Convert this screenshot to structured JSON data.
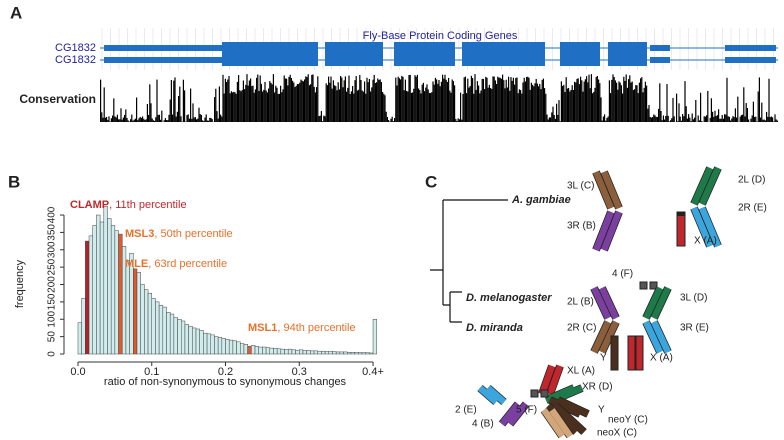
{
  "panel_a": {
    "label": "A",
    "track_title": "Fly-Base Protein Coding Genes",
    "genes": [
      "CG1832",
      "CG1832"
    ],
    "conservation_label": "Conservation"
  },
  "chart_data": {
    "type": "histogram",
    "panel_label": "B",
    "x_label": "ratio of non-synonymous to synonymous changes",
    "y_label": "frequency",
    "bins": [
      0,
      0.005,
      0.01,
      0.015,
      0.02,
      0.025,
      0.03,
      0.035,
      0.04,
      0.045,
      0.05,
      0.055,
      0.06,
      0.065,
      0.07,
      0.075,
      0.08,
      0.085,
      0.09,
      0.095,
      0.1,
      0.105,
      0.11,
      0.115,
      0.12,
      0.125,
      0.13,
      0.135,
      0.14,
      0.145,
      0.15,
      0.155,
      0.16,
      0.165,
      0.17,
      0.175,
      0.18,
      0.185,
      0.19,
      0.195,
      0.2,
      0.205,
      0.21,
      0.215,
      0.22,
      0.225,
      0.23,
      0.235,
      0.24,
      0.245,
      0.25,
      0.255,
      0.26,
      0.265,
      0.27,
      0.275,
      0.28,
      0.285,
      0.29,
      0.295,
      0.3,
      0.305,
      0.31,
      0.315,
      0.32,
      0.325,
      0.33,
      0.335,
      0.34,
      0.345,
      0.35,
      0.355,
      0.36,
      0.365,
      0.37,
      0.375,
      0.38,
      0.385,
      0.39,
      0.395,
      0.4,
      0.405
    ],
    "values": [
      90,
      160,
      325,
      340,
      370,
      400,
      380,
      425,
      390,
      370,
      355,
      345,
      310,
      270,
      290,
      245,
      235,
      200,
      185,
      175,
      160,
      150,
      140,
      135,
      120,
      115,
      105,
      100,
      95,
      85,
      80,
      75,
      72,
      68,
      60,
      58,
      55,
      50,
      48,
      45,
      42,
      40,
      38,
      35,
      30,
      28,
      22,
      25,
      22,
      20,
      20,
      18,
      17,
      16,
      15,
      14,
      13,
      14,
      12,
      11,
      12,
      10,
      10,
      9,
      9,
      8,
      8,
      7,
      8,
      7,
      6,
      6,
      6,
      5,
      5,
      5,
      4,
      4,
      4,
      3,
      100
    ],
    "colors": [
      "#d0ecec",
      "#d0ecec",
      "#b3202a",
      "#d0ecec",
      "#d0ecec",
      "#d0ecec",
      "#d0ecec",
      "#d0ecec",
      "#d0ecec",
      "#d0ecec",
      "#d0ecec",
      "#e05a2b",
      "#d0ecec",
      "#d0ecec",
      "#d0ecec",
      "#e05a2b",
      "#d0ecec",
      "#d0ecec",
      "#d0ecec",
      "#d0ecec",
      "#d0ecec",
      "#d0ecec",
      "#d0ecec",
      "#d0ecec",
      "#d0ecec",
      "#d0ecec",
      "#d0ecec",
      "#d0ecec",
      "#d0ecec",
      "#d0ecec",
      "#d0ecec",
      "#d0ecec",
      "#d0ecec",
      "#d0ecec",
      "#d0ecec",
      "#d0ecec",
      "#d0ecec",
      "#d0ecec",
      "#d0ecec",
      "#d0ecec",
      "#d0ecec",
      "#d0ecec",
      "#d0ecec",
      "#d0ecec",
      "#d0ecec",
      "#d0ecec",
      "#e05a2b",
      "#d0ecec",
      "#d0ecec",
      "#d0ecec",
      "#d0ecec",
      "#d0ecec",
      "#d0ecec",
      "#d0ecec",
      "#d0ecec",
      "#d0ecec",
      "#d0ecec",
      "#d0ecec",
      "#d0ecec",
      "#d0ecec",
      "#d0ecec",
      "#d0ecec",
      "#d0ecec",
      "#d0ecec",
      "#d0ecec",
      "#d0ecec",
      "#d0ecec",
      "#d0ecec",
      "#d0ecec",
      "#d0ecec",
      "#d0ecec",
      "#d0ecec",
      "#d0ecec",
      "#d0ecec",
      "#d0ecec",
      "#d0ecec",
      "#d0ecec",
      "#d0ecec",
      "#d0ecec",
      "#d0ecec",
      "#d0ecec"
    ],
    "xlim": [
      -0.01,
      0.42
    ],
    "ylim": [
      0,
      430
    ],
    "xticks": [
      {
        "value": 0,
        "label": "0.0"
      },
      0.1,
      0.2,
      0.3,
      {
        "value": 0.4,
        "label": "0.4+"
      }
    ],
    "yticks": [
      0,
      50,
      100,
      150,
      200,
      250,
      300,
      350,
      400
    ],
    "annotations": [
      {
        "name": "CLAMP",
        "text": ", 11th percentile",
        "color": "#c0272d"
      },
      {
        "name": "MSL3",
        "text": ", 50th percentile",
        "color": "#e8702a"
      },
      {
        "name": "MLE",
        "text": ", 63rd percentile",
        "color": "#e8702a"
      },
      {
        "name": "MSL1",
        "text": ", 94th percentile",
        "color": "#e8702a"
      }
    ]
  },
  "panel_c": {
    "label": "C",
    "species": [
      "A. gambiae",
      "D. melanogaster",
      "D. miranda"
    ],
    "gambiae": [
      "3L (C)",
      "3R (B)",
      "2L (D)",
      "2R (E)",
      "X (A)"
    ],
    "melanogaster": [
      "4 (F)",
      "2L (B)",
      "2R (C)",
      "3L (D)",
      "3R (E)",
      "Y",
      "X (A)"
    ],
    "miranda": [
      "XL (A)",
      "XR (D)",
      "2 (E)",
      "5 (F)",
      "Y",
      "4 (B)",
      "neoY (C)",
      "neoX (C)"
    ]
  }
}
